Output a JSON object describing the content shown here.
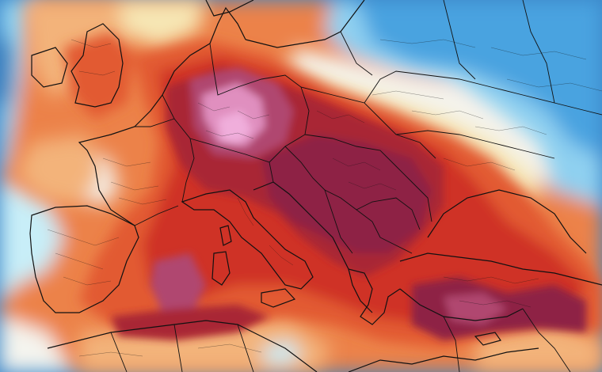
{
  "map": {
    "kind": "temperature-anomaly-field",
    "region": "",
    "colors": {
      "deep_blue": "#1f5fa8",
      "blue": "#4aa3e0",
      "light_blue": "#8fd0f0",
      "pale_cyan": "#c8eef8",
      "white": "#f4f4ee",
      "pale_yellow": "#f6e6b4",
      "light_orange": "#f3b37a",
      "orange": "#ec8248",
      "red_orange": "#e25a32",
      "red": "#cf3326",
      "dark_red": "#a92636",
      "crimson": "#8e2244",
      "magenta": "#b04670",
      "pink": "#e08fbf",
      "light_pink": "#f0aedb",
      "borders": "#111111"
    },
    "features": [
      "coastlines",
      "country-borders",
      "regional-borders"
    ]
  }
}
